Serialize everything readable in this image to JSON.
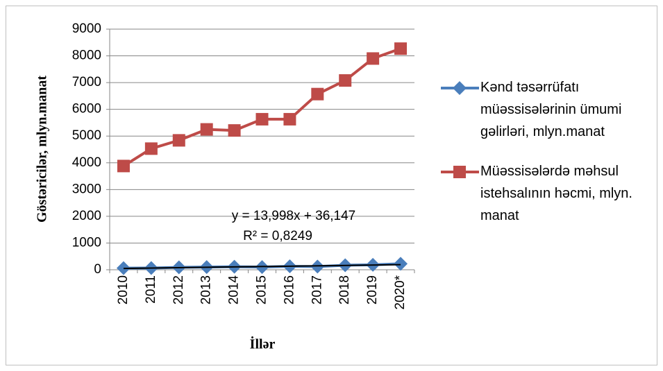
{
  "chart_data": {
    "type": "line",
    "x_label": "İllər",
    "y_label": "Göstəricilər, mlyn.manat",
    "categories": [
      "2010",
      "2011",
      "2012",
      "2013",
      "2014",
      "2015",
      "2016",
      "2017",
      "2018",
      "2019",
      "2020*"
    ],
    "series": [
      {
        "name": "Kənd təsərrüfatı müəssisələrinin ümumi gəlirləri, mlyn.manat",
        "color": "#4a7ebb",
        "marker": "diamond",
        "values": [
          60,
          65,
          90,
          100,
          115,
          100,
          130,
          120,
          170,
          185,
          225
        ]
      },
      {
        "name": "Müəssisələrdə məhsul istehsalının həcmi, mlyn. manat",
        "color": "#be4b48",
        "marker": "square",
        "values": [
          3880,
          4530,
          4840,
          5250,
          5210,
          5630,
          5630,
          6570,
          7080,
          7900,
          8270
        ]
      }
    ],
    "trendline": {
      "slope": 13.998,
      "intercept": 36.147,
      "r2": 0.8249,
      "color": "#000000",
      "equation_label": "y = 13,998x + 36,147",
      "r2_label": "R² = 0,8249"
    },
    "ylim": [
      0,
      9000
    ],
    "yticks": [
      0,
      1000,
      2000,
      3000,
      4000,
      5000,
      6000,
      7000,
      8000,
      9000
    ],
    "grid": true,
    "legend": "right"
  }
}
